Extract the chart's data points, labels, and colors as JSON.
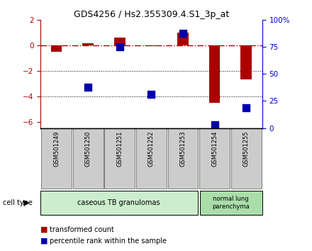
{
  "title": "GDS4256 / Hs2.355309.4.S1_3p_at",
  "samples": [
    "GSM501249",
    "GSM501250",
    "GSM501251",
    "GSM501252",
    "GSM501253",
    "GSM501254",
    "GSM501255"
  ],
  "red_values": [
    -0.5,
    0.15,
    0.6,
    -0.05,
    1.0,
    -4.5,
    -2.7
  ],
  "blue_pct": [
    null,
    37.5,
    75.0,
    31.25,
    87.5,
    3.0,
    18.75
  ],
  "ylim_left": [
    -6.5,
    2.0
  ],
  "ylim_right": [
    0,
    100
  ],
  "yticks_left": [
    -6,
    -4,
    -2,
    0,
    2
  ],
  "yticks_right": [
    0,
    25,
    50,
    75,
    100
  ],
  "right_axis_color": "#0000cc",
  "red_color": "#aa0000",
  "blue_color": "#0000aa",
  "group1_color": "#cceecc",
  "group2_color": "#aaddaa",
  "group1_label": "caseous TB granulomas",
  "group2_label": "normal lung\nparenchyma",
  "cell_type_label": "cell type",
  "legend_red": "transformed count",
  "legend_blue": "percentile rank within the sample",
  "bar_width": 0.35,
  "marker_size": 55,
  "label_box_color": "#cccccc",
  "label_box_edge": "#555555"
}
